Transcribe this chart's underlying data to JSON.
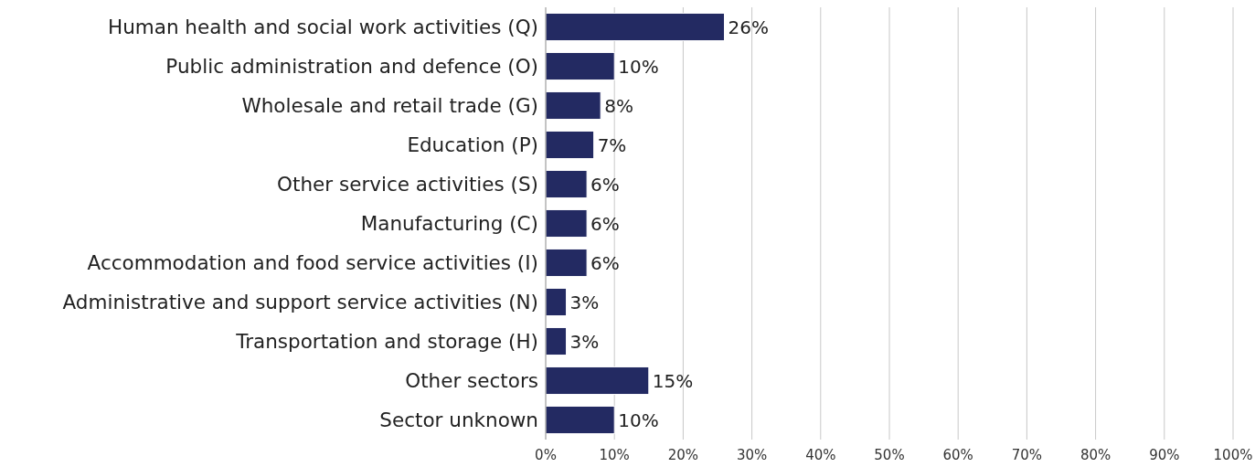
{
  "chart_data": {
    "type": "bar",
    "orientation": "horizontal",
    "categories": [
      "Human health and social work activities (Q)",
      "Public administration and defence (O)",
      "Wholesale and retail trade (G)",
      "Education (P)",
      "Other service activities (S)",
      "Manufacturing (C)",
      "Accommodation and food service activities (I)",
      "Administrative and support service activities (N)",
      "Transportation and storage (H)",
      "Other sectors",
      "Sector unknown"
    ],
    "values": [
      26,
      10,
      8,
      7,
      6,
      6,
      6,
      3,
      3,
      15,
      10
    ],
    "value_labels": [
      "26%",
      "10%",
      "8%",
      "7%",
      "6%",
      "6%",
      "6%",
      "3%",
      "3%",
      "15%",
      "10%"
    ],
    "color": "#232a62",
    "xlim": [
      0,
      100
    ],
    "xticks": [
      {
        "value": 0,
        "label": "0%"
      },
      {
        "value": 10,
        "label": "10%"
      },
      {
        "value": 20,
        "label": "20%"
      },
      {
        "value": 30,
        "label": "30%"
      },
      {
        "value": 40,
        "label": "40%"
      },
      {
        "value": 50,
        "label": "50%"
      },
      {
        "value": 60,
        "label": "60%"
      },
      {
        "value": 70,
        "label": "70%"
      },
      {
        "value": 80,
        "label": "80%"
      },
      {
        "value": 90,
        "label": "90%"
      },
      {
        "value": 100,
        "label": "100%"
      }
    ],
    "grid": "x"
  }
}
